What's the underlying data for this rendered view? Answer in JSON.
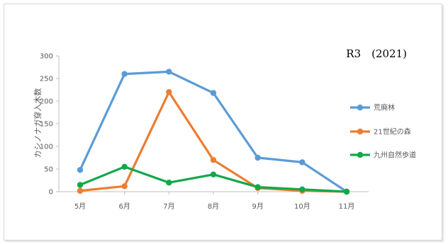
{
  "chart_data": {
    "type": "line",
    "title": "R3　(2021)",
    "xlabel": "",
    "ylabel": "カシノナガ穿入木数",
    "categories": [
      "5月",
      "6月",
      "7月",
      "8月",
      "9月",
      "10月",
      "11月"
    ],
    "ylim": [
      0,
      300
    ],
    "yticks": [
      0,
      50,
      100,
      150,
      200,
      250,
      300
    ],
    "grid": false,
    "legend_position": "right",
    "series": [
      {
        "name": "荒廃林",
        "color": "#5B9BD5",
        "values": [
          48,
          260,
          265,
          218,
          75,
          65,
          0
        ]
      },
      {
        "name": "21世紀の森",
        "color": "#ED7D31",
        "values": [
          2,
          12,
          220,
          70,
          8,
          2,
          0
        ]
      },
      {
        "name": "九州自然歩道",
        "color": "#12A84A",
        "values": [
          15,
          55,
          20,
          38,
          10,
          5,
          0
        ]
      }
    ]
  }
}
